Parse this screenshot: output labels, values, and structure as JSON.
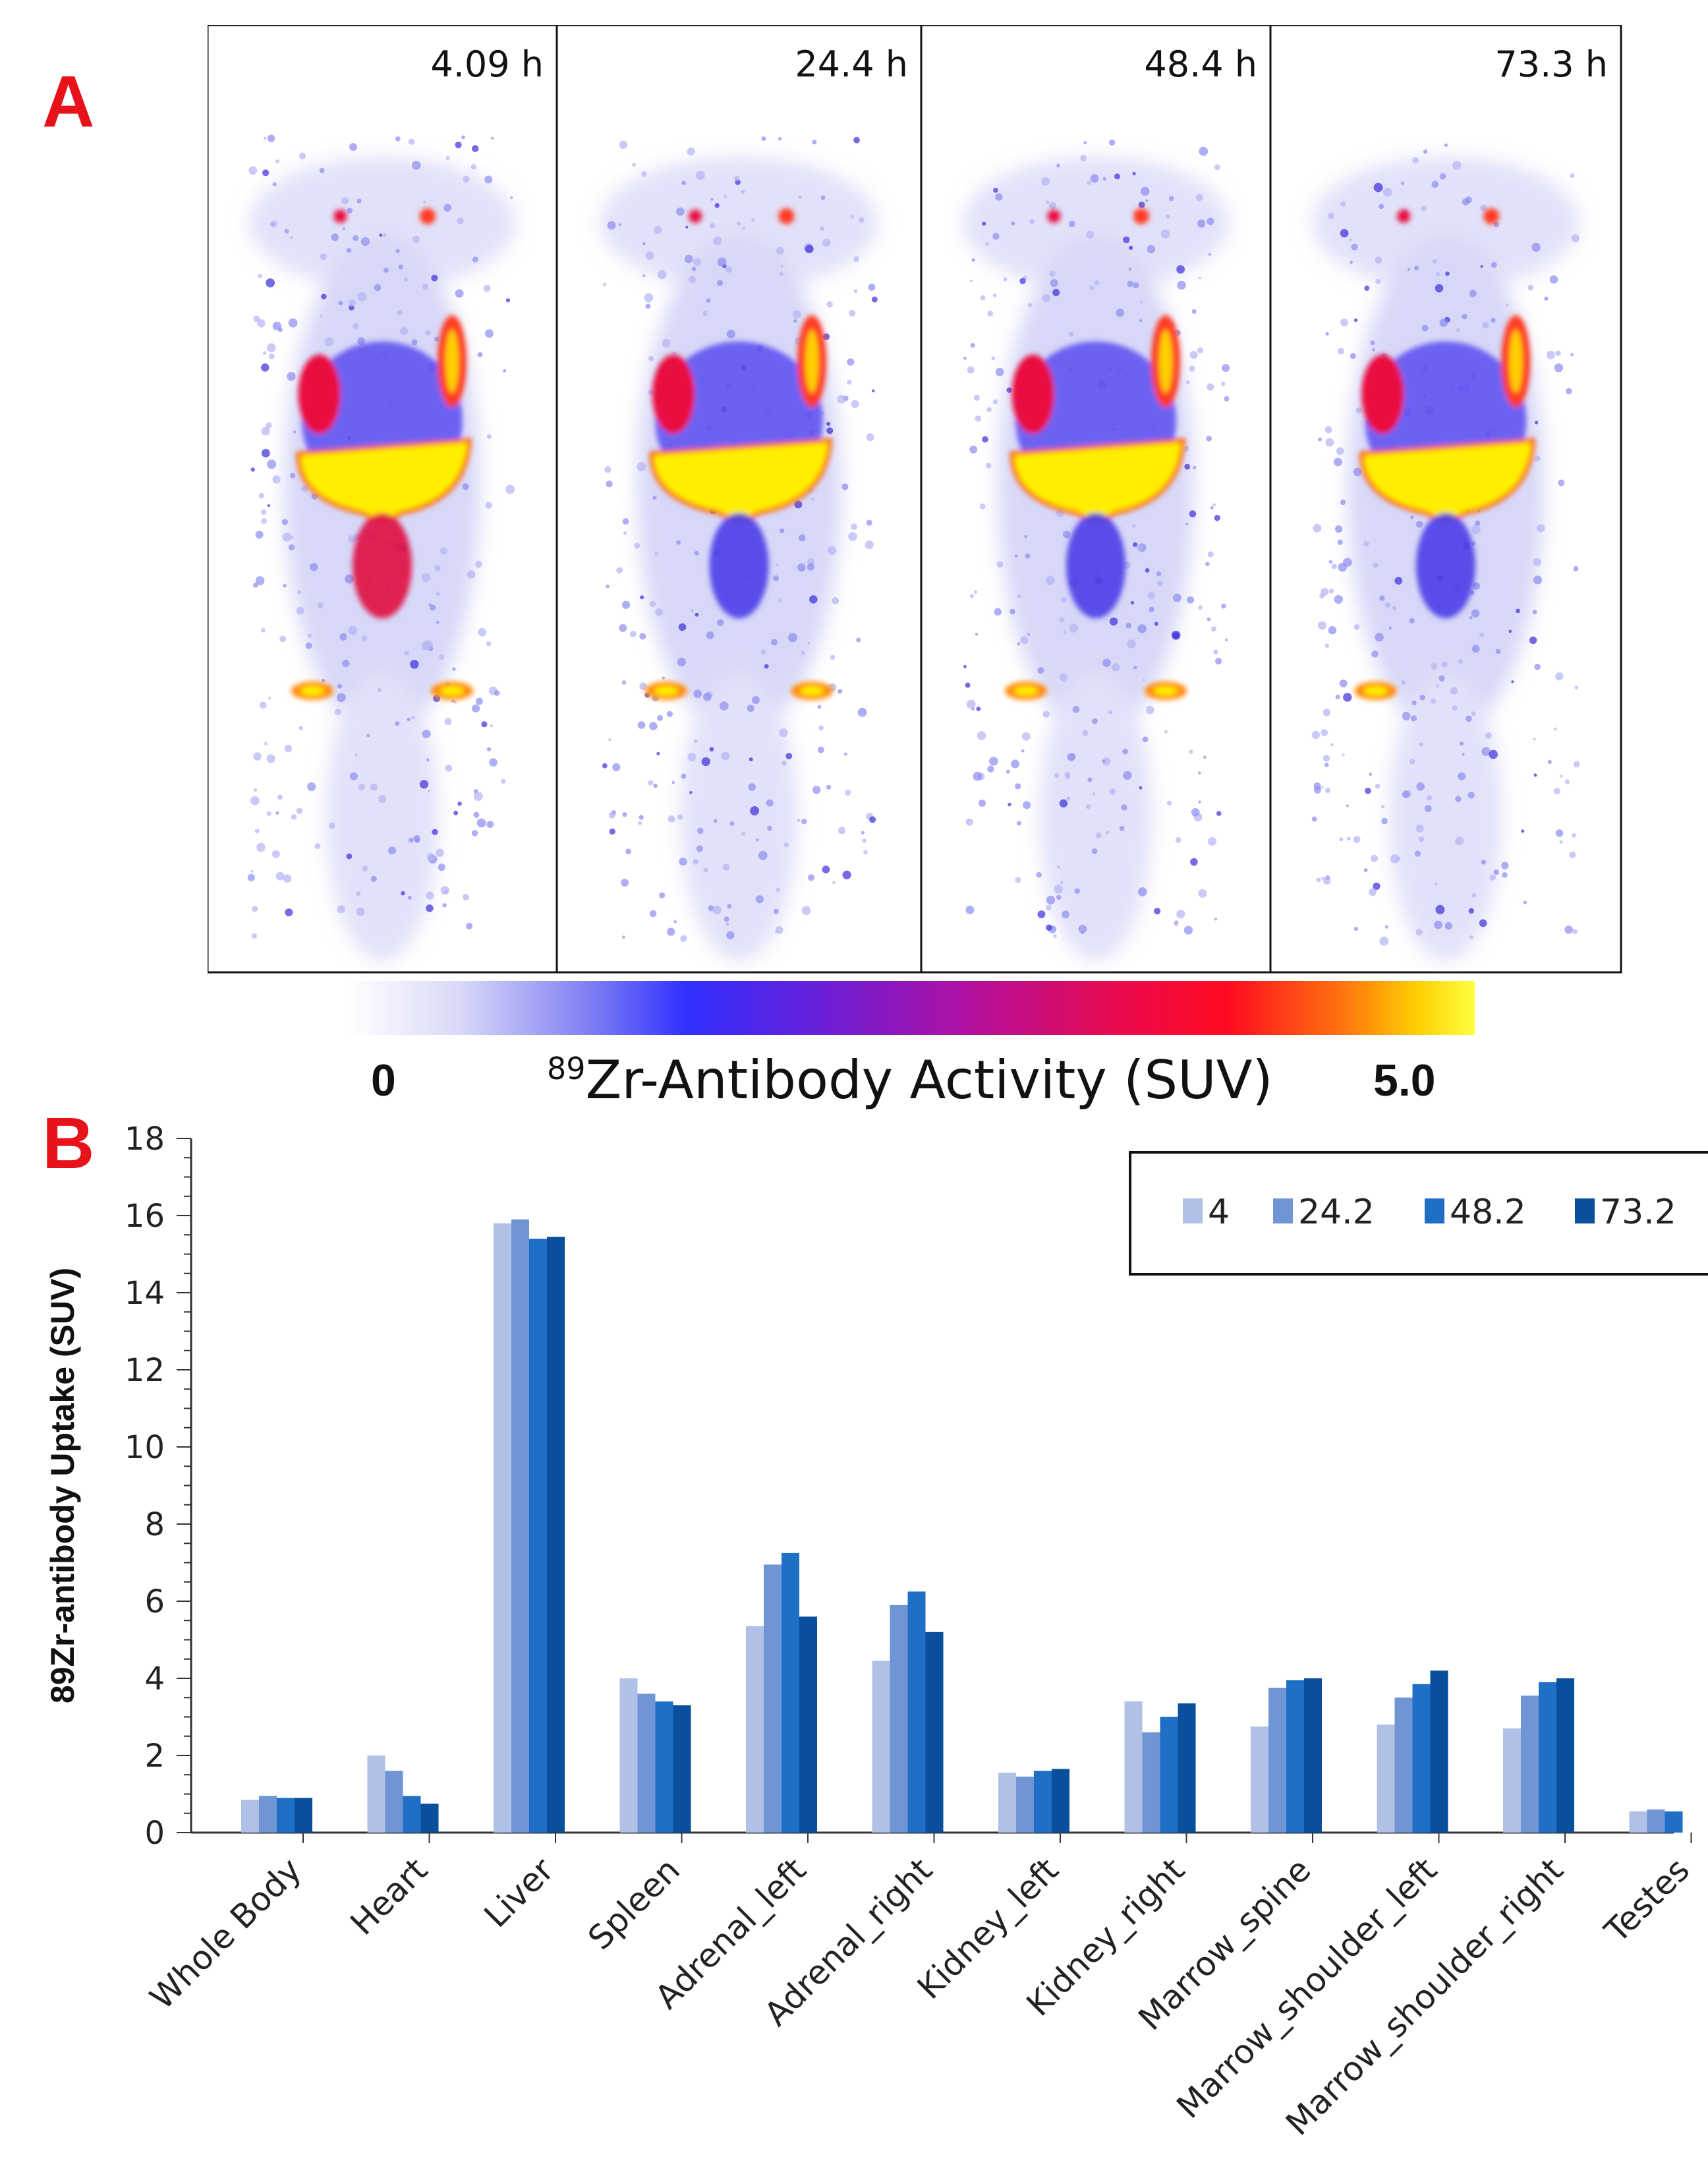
{
  "panel_a": {
    "letter": "A",
    "frames": [
      {
        "time": "4.09 h"
      },
      {
        "time": "24.4 h"
      },
      {
        "time": "48.4 h"
      },
      {
        "time": "73.3 h"
      }
    ],
    "colorbar": {
      "min_label": "0",
      "max_label": "5.0",
      "title_sup": "89",
      "title_main": "Zr-Antibody Activity (SUV)",
      "colors": [
        "#ffffff",
        "#3030ff",
        "#b010a0",
        "#ff0a20",
        "#ff7010",
        "#ffff40"
      ]
    }
  },
  "panel_b": {
    "letter": "B"
  },
  "chart_data": {
    "type": "bar",
    "title": "",
    "xlabel": "",
    "ylabel": "89Zr-antibody Uptake (SUV)",
    "ylim": [
      0,
      18
    ],
    "yticks": [
      0,
      2,
      4,
      6,
      8,
      10,
      12,
      14,
      16,
      18
    ],
    "grid": false,
    "legend_position": "top-right",
    "categories": [
      "Whole Body",
      "Heart",
      "Liver",
      "Spleen",
      "Adrenal_left",
      "Adrenal_right",
      "Kidney_left",
      "Kidney_right",
      "Marrow_spine",
      "Marrow_shoulder_left",
      "Marrow_shoulder_right",
      "Testes"
    ],
    "series": [
      {
        "name": "4",
        "color": "#b0c0e6",
        "values": [
          0.85,
          2.0,
          15.8,
          4.0,
          5.35,
          4.45,
          1.55,
          3.4,
          2.75,
          2.8,
          2.7,
          0.55
        ]
      },
      {
        "name": "24.2",
        "color": "#6f95d4",
        "values": [
          0.95,
          1.6,
          15.9,
          3.6,
          6.95,
          5.9,
          1.45,
          2.6,
          3.75,
          3.5,
          3.55,
          0.6
        ]
      },
      {
        "name": "48.2",
        "color": "#1f6fc6",
        "values": [
          0.9,
          0.95,
          15.4,
          3.4,
          7.25,
          6.25,
          1.6,
          3.0,
          3.95,
          3.85,
          3.9,
          0.55
        ]
      },
      {
        "name": "73.2",
        "color": "#0a4f9c",
        "values": [
          0.9,
          0.75,
          15.45,
          3.3,
          5.6,
          5.2,
          1.65,
          3.35,
          4.0,
          4.2,
          4.0,
          0.0
        ]
      }
    ]
  }
}
